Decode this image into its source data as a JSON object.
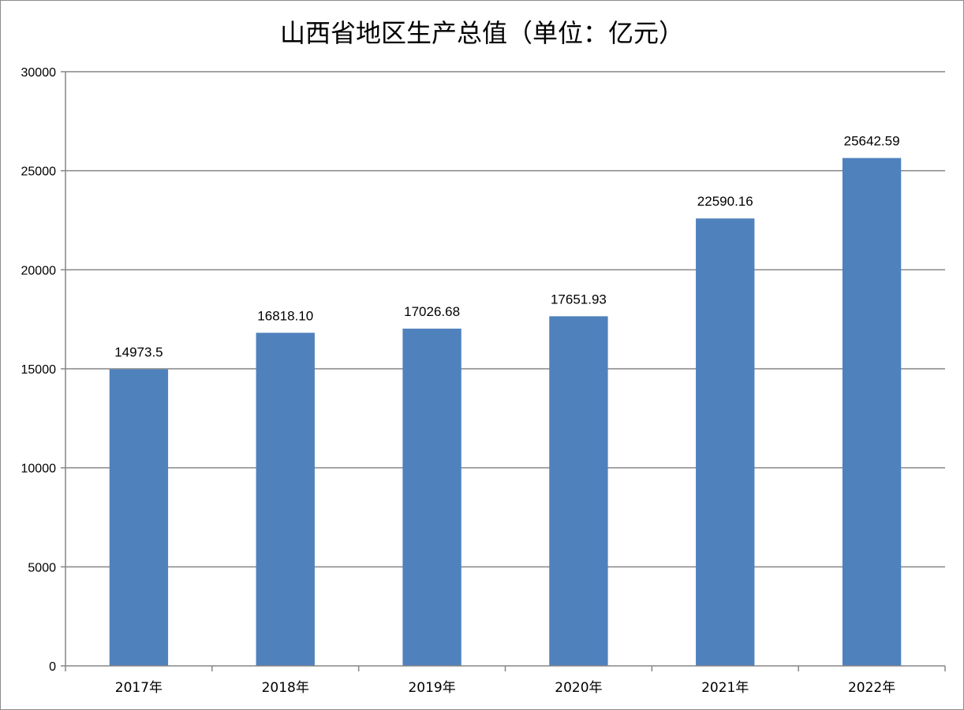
{
  "chart_data": {
    "type": "bar",
    "title": "山西省地区生产总值（单位：亿元）",
    "categories": [
      "2017年",
      "2018年",
      "2019年",
      "2020年",
      "2021年",
      "2022年"
    ],
    "values": [
      14973.5,
      16818.1,
      17026.68,
      17651.93,
      22590.16,
      25642.59
    ],
    "value_labels": [
      "14973.5",
      "16818.10",
      "17026.68",
      "17651.93",
      "22590.16",
      "25642.59"
    ],
    "ylim": [
      0,
      30000
    ],
    "yticks": [
      0,
      5000,
      10000,
      15000,
      20000,
      25000,
      30000
    ],
    "xlabel": "",
    "ylabel": "",
    "grid": true,
    "legend": "none",
    "colors": {
      "bar": "#4f81bd",
      "grid": "#868686",
      "axis": "#868686"
    }
  }
}
